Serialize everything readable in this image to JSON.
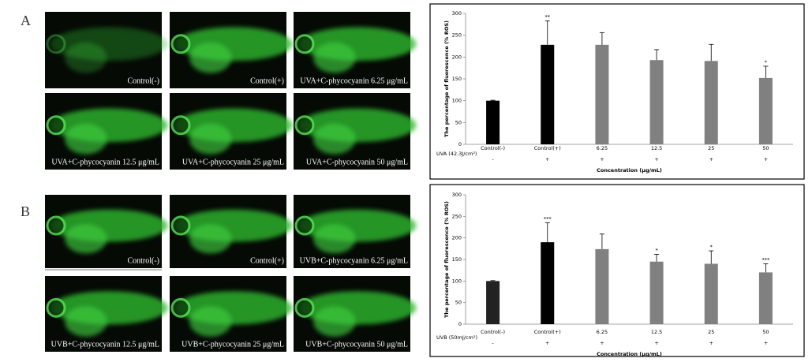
{
  "panels": [
    {
      "label": "A",
      "images": [
        "Control(-)",
        "Control(+)",
        "UVA+C-phycocyanin 6.25 μg/mL",
        "UVA+C-phycocyanin 12.5 μg/mL",
        "UVA+C-phycocyanin 25 μg/mL",
        "UVA+C-phycocyanin 50 μg/mL"
      ]
    },
    {
      "label": "B",
      "images": [
        "Control(-)",
        "Control(+)",
        "UVB+C-phycocyanin 6.25 μg/mL",
        "UVB+C-phycocyanin 12.5 μg/mL",
        "UVB+C-phycocyanin 25 μg/mL",
        "UVB+C-phycocyanin 50 μg/mL"
      ]
    }
  ],
  "chart_data": [
    {
      "type": "bar",
      "y_label": "The percentage of fluorescence (% ROS)",
      "x_label": "Concentration (μg/mL)",
      "categories": [
        "Control(-)",
        "Control(+)",
        "6.25",
        "12.5",
        "25",
        "50"
      ],
      "values": [
        100,
        228,
        228,
        193,
        191,
        152
      ],
      "errors": [
        1,
        55,
        28,
        24,
        38,
        27
      ],
      "colors": [
        "#000000",
        "#000000",
        "#808080",
        "#808080",
        "#808080",
        "#808080"
      ],
      "annotations": [
        null,
        "**",
        null,
        null,
        null,
        "*"
      ],
      "condition_label": "UVA (42.3J/cm²)",
      "condition_values": [
        "-",
        "+",
        "+",
        "+",
        "+",
        "+"
      ],
      "ylim": [
        0,
        300
      ],
      "yticks": [
        0,
        50,
        100,
        150,
        200,
        250,
        300
      ]
    },
    {
      "type": "bar",
      "y_label": "The percentage of fluorescence (% ROS)",
      "x_label": "Concentration (μg/mL)",
      "categories": [
        "Control(-)",
        "Control(+)",
        "6.25",
        "12.5",
        "25",
        "50"
      ],
      "values": [
        100,
        190,
        174,
        145,
        140,
        120
      ],
      "errors": [
        1,
        45,
        35,
        17,
        30,
        20
      ],
      "colors": [
        "#222222",
        "#000000",
        "#808080",
        "#808080",
        "#808080",
        "#808080"
      ],
      "annotations": [
        null,
        "***",
        null,
        "*",
        "*",
        "***"
      ],
      "condition_label": "UVB (50mJ/cm²)",
      "condition_values": [
        "-",
        "+",
        "+",
        "+",
        "+",
        "+"
      ],
      "ylim": [
        0,
        300
      ],
      "yticks": [
        0,
        50,
        100,
        150,
        200,
        250,
        300
      ]
    }
  ]
}
